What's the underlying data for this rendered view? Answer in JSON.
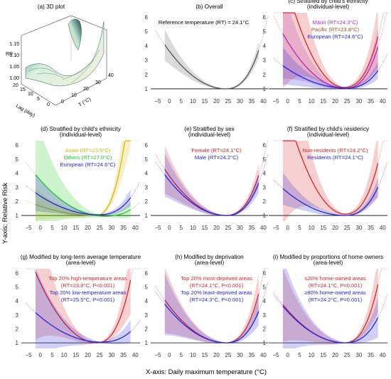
{
  "figure": {
    "xlabel": "X-axis: Daily maximum temperature (°C)",
    "ylabel": "Y-axis: Relative Risk",
    "colors": {
      "grey": "#555555",
      "red": "#d62728",
      "blue": "#2626d9",
      "purple": "#b030b0",
      "brown": "#a0522d",
      "yellow": "#d8b800",
      "green": "#22cc22"
    }
  },
  "panel_3d": {
    "title": "(a) 3D plot",
    "rr_label": "RR",
    "lag_label": "Lag (day)",
    "temp_label": "T (°C)",
    "rr_ticks": [
      "1.15",
      "1.10",
      "1.05",
      "1.00"
    ],
    "lag_ticks": [
      "20",
      "15",
      "10",
      "5",
      "0"
    ],
    "temp_ticks": [
      "40",
      "30",
      "20",
      "10",
      "0"
    ]
  },
  "chart_data": [
    {
      "type": "line",
      "title": "(b) Overall",
      "annotations": [
        {
          "text": "Reference temperature (RT) = 24.1°C",
          "color": "#000000"
        }
      ],
      "xticks": [
        "−5",
        "0",
        "5",
        "10",
        "15",
        "20",
        "25",
        "30",
        "35",
        "40"
      ],
      "yticks": [
        "1",
        "2",
        "3",
        "4",
        "5",
        "6"
      ],
      "xlim": [
        -8,
        42
      ],
      "ylim": [
        0.6,
        6.3
      ],
      "series": [
        {
          "color": "#555555",
          "rt": 24.1,
          "a": 0.0045,
          "b": 0.0016,
          "c": 1.0,
          "band": 0.08,
          "lo": -2,
          "hi": 38,
          "obs": [
            -5,
            35
          ]
        }
      ]
    },
    {
      "type": "line",
      "title": "(c) Stratified by child's ethnicity",
      "subtitle": "(individual-level)",
      "annotations": [
        {
          "text": "Māori (RT=24.3°C)",
          "color": "#b030b0"
        },
        {
          "text": "Pacific (RT=23.8°C)",
          "color": "#a0522d"
        },
        {
          "text": "European (RT=24.6°C)",
          "color": "#2626d9"
        }
      ],
      "xticks": [
        "−5",
        "0",
        "5",
        "10",
        "15",
        "20",
        "25",
        "30",
        "35",
        "40"
      ],
      "yticks": [
        "1",
        "2",
        "3",
        "4",
        "5",
        "6"
      ],
      "xlim": [
        -8,
        42
      ],
      "ylim": [
        0.6,
        6.3
      ],
      "series": [
        {
          "color": "#d62728",
          "rt": 23.8,
          "a": 0.012,
          "b": 0.002,
          "c": 1.1,
          "band": 0.28,
          "lo": -2,
          "hi": 38,
          "obs": [
            -5,
            35
          ]
        },
        {
          "color": "#b030b0",
          "rt": 24.3,
          "a": 0.0055,
          "b": 0.0018,
          "c": 1.03,
          "band": 0.2,
          "lo": -2,
          "hi": 38,
          "obs": [
            -5,
            35
          ]
        },
        {
          "color": "#2626d9",
          "rt": 24.6,
          "a": 0.0022,
          "b": 0.0008,
          "c": 1.05,
          "band": 0.15,
          "lo": -2,
          "hi": 38,
          "obs": [
            -5,
            35
          ]
        }
      ]
    },
    {
      "type": "line",
      "title": "(d) Stratified by child's ethnicity",
      "subtitle": "(individual-level)",
      "annotations": [
        {
          "text": "Asian (RT=23.5°C)",
          "color": "#d8b800"
        },
        {
          "text": "Others (RT=27.0°C)",
          "color": "#22cc22"
        },
        {
          "text": "European (RT=24.6°C)",
          "color": "#2626d9"
        }
      ],
      "xticks": [
        "−5",
        "0",
        "5",
        "10",
        "15",
        "20",
        "25",
        "30",
        "35",
        "40"
      ],
      "yticks": [
        "1",
        "2",
        "3",
        "4",
        "5",
        "6"
      ],
      "xlim": [
        -8,
        42
      ],
      "ylim": [
        0.6,
        6.3
      ],
      "series": [
        {
          "color": "#d8b800",
          "rt": 23.5,
          "a": 0.0012,
          "b": 0.0045,
          "c": 1.0,
          "band": 0.2,
          "lo": -2,
          "hi": 38,
          "obs": [
            -5,
            35
          ]
        },
        {
          "color": "#22cc22",
          "rt": 27.0,
          "a": 0.0035,
          "b": 0.0005,
          "c": 0.95,
          "band": 0.3,
          "lo": -2,
          "hi": 38,
          "obs": [
            -5,
            35
          ]
        },
        {
          "color": "#2626d9",
          "rt": 24.6,
          "a": 0.0022,
          "b": 0.0008,
          "c": 1.05,
          "band": 0.15,
          "lo": -2,
          "hi": 38,
          "obs": [
            -5,
            35
          ]
        }
      ]
    },
    {
      "type": "line",
      "title": "(e) Stratified by sex",
      "subtitle": "(individual-level)",
      "annotations": [
        {
          "text": "Female (RT=24.1°C)",
          "color": "#d62728"
        },
        {
          "text": "Male (RT=24.2°C)",
          "color": "#2626d9"
        }
      ],
      "xticks": [
        "−5",
        "0",
        "5",
        "10",
        "15",
        "20",
        "25",
        "30",
        "35",
        "40"
      ],
      "yticks": [
        "1",
        "2",
        "3",
        "4",
        "5",
        "6"
      ],
      "xlim": [
        -8,
        42
      ],
      "ylim": [
        0.6,
        6.3
      ],
      "series": [
        {
          "color": "#d62728",
          "rt": 24.1,
          "a": 0.0048,
          "b": 0.0017,
          "c": 1.0,
          "band": 0.12,
          "lo": -2,
          "hi": 38,
          "obs": [
            -5,
            35
          ]
        },
        {
          "color": "#2626d9",
          "rt": 24.2,
          "a": 0.0042,
          "b": 0.0014,
          "c": 1.0,
          "band": 0.12,
          "lo": -2,
          "hi": 38,
          "obs": [
            -5,
            35
          ]
        }
      ]
    },
    {
      "type": "line",
      "title": "(f) Stratified by child's residency",
      "subtitle": "(individual-level)",
      "annotations": [
        {
          "text": "Non-residents (RT=24.2°C)",
          "color": "#d62728"
        },
        {
          "text": "Residents (RT=24.1°C)",
          "color": "#2626d9"
        }
      ],
      "xticks": [
        "−5",
        "0",
        "5",
        "10",
        "15",
        "20",
        "25",
        "30",
        "35",
        "40"
      ],
      "yticks": [
        "1",
        "2",
        "3",
        "4",
        "5",
        "6"
      ],
      "xlim": [
        -8,
        42
      ],
      "ylim": [
        0.6,
        6.3
      ],
      "series": [
        {
          "color": "#d62728",
          "rt": 24.2,
          "a": 0.012,
          "b": 0.0022,
          "c": 1.1,
          "band": 0.3,
          "lo": -2,
          "hi": 38,
          "obs": [
            -5,
            35
          ]
        },
        {
          "color": "#2626d9",
          "rt": 24.1,
          "a": 0.0028,
          "b": 0.0012,
          "c": 1.0,
          "band": 0.12,
          "lo": -2,
          "hi": 38,
          "obs": [
            -5,
            35
          ]
        }
      ]
    },
    {
      "type": "line",
      "title": "(g) Modified by long-term average temperature",
      "subtitle": "(area-level)",
      "annotations": [
        {
          "text": "Top 20% high-temperature areas",
          "color": "#d62728"
        },
        {
          "text": "(RT=23.9°C, P<0.001)",
          "color": "#d62728"
        },
        {
          "text": "Top 20% low-temperature areas",
          "color": "#2626d9"
        },
        {
          "text": "(RT=25.5°C, P<0.001)",
          "color": "#2626d9"
        }
      ],
      "xticks": [
        "−5",
        "0",
        "5",
        "10",
        "15",
        "20",
        "25",
        "30",
        "35",
        "40"
      ],
      "yticks": [
        "1",
        "2",
        "3",
        "4",
        "5",
        "6"
      ],
      "xlim": [
        -8,
        42
      ],
      "ylim": [
        0.6,
        6.3
      ],
      "series": [
        {
          "color": "#d62728",
          "rt": 23.9,
          "a": 0.0075,
          "b": 0.0026,
          "c": 1.0,
          "band": 0.25,
          "lo": -2,
          "hi": 38,
          "obs": [
            -5,
            35
          ]
        },
        {
          "color": "#2626d9",
          "rt": 25.5,
          "a": 0.0028,
          "b": 0.0006,
          "c": 1.05,
          "band": 0.3,
          "lo": -2,
          "hi": 38,
          "obs": [
            -5,
            35
          ]
        }
      ]
    },
    {
      "type": "line",
      "title": "(h) Modified by deprivation",
      "subtitle": "(area-level)",
      "annotations": [
        {
          "text": "Top 20% most-deprived areas",
          "color": "#d62728"
        },
        {
          "text": "(RT=24.1°C, P<0.001)",
          "color": "#d62728"
        },
        {
          "text": "Top 20% least-deprived areas",
          "color": "#2626d9"
        },
        {
          "text": "(RT=24.3°C, P<0.001)",
          "color": "#2626d9"
        }
      ],
      "xticks": [
        "−5",
        "0",
        "5",
        "10",
        "15",
        "20",
        "25",
        "30",
        "35",
        "40"
      ],
      "yticks": [
        "1",
        "2",
        "3",
        "4",
        "5",
        "6"
      ],
      "xlim": [
        -8,
        42
      ],
      "ylim": [
        0.6,
        6.3
      ],
      "series": [
        {
          "color": "#d62728",
          "rt": 24.1,
          "a": 0.0045,
          "b": 0.0021,
          "c": 1.0,
          "band": 0.18,
          "lo": -2,
          "hi": 38,
          "obs": [
            -5,
            35
          ]
        },
        {
          "color": "#2626d9",
          "rt": 24.3,
          "a": 0.004,
          "b": 0.0014,
          "c": 1.0,
          "band": 0.18,
          "lo": -2,
          "hi": 38,
          "obs": [
            -5,
            35
          ]
        }
      ]
    },
    {
      "type": "line",
      "title": "(i) Modified by proportions of home owners",
      "subtitle": "(area-level)",
      "annotations": [
        {
          "text": "≤20% home-owned areas",
          "color": "#d62728"
        },
        {
          "text": "(RT=24.1°C, P=0.001)",
          "color": "#d62728"
        },
        {
          "text": "≥80% home-owned areas",
          "color": "#2626d9"
        },
        {
          "text": "(RT=24.2°C, P=0.001)",
          "color": "#2626d9"
        }
      ],
      "xticks": [
        "−5",
        "0",
        "5",
        "10",
        "15",
        "20",
        "25",
        "30",
        "35",
        "40"
      ],
      "yticks": [
        "1",
        "2",
        "3",
        "4",
        "5",
        "6"
      ],
      "xlim": [
        -8,
        42
      ],
      "ylim": [
        0.6,
        6.3
      ],
      "series": [
        {
          "color": "#d62728",
          "rt": 24.1,
          "a": 0.004,
          "b": 0.0025,
          "c": 1.0,
          "band": 0.22,
          "lo": -2,
          "hi": 38,
          "obs": [
            -5,
            35
          ]
        },
        {
          "color": "#2626d9",
          "rt": 24.2,
          "a": 0.0038,
          "b": 0.0011,
          "c": 1.0,
          "band": 0.3,
          "lo": -2,
          "hi": 38,
          "obs": [
            -5,
            35
          ]
        }
      ]
    }
  ]
}
